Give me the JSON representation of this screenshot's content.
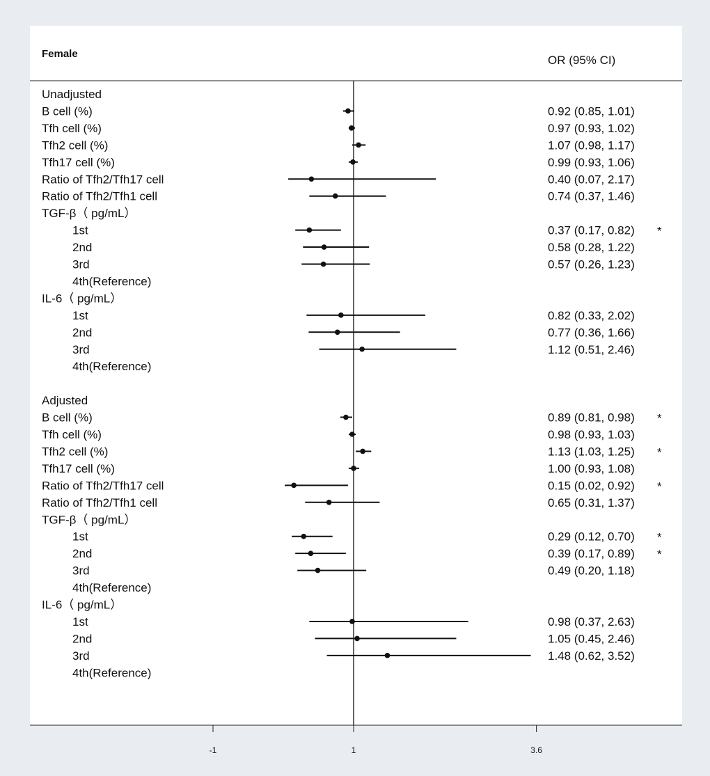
{
  "chart_data": {
    "type": "forest",
    "title": "",
    "group_label": "Female",
    "ci_header": "OR (95% CI)",
    "x_ticks": [
      {
        "value": -1,
        "label": "-1"
      },
      {
        "value": 1,
        "label": "1"
      },
      {
        "value": 3.6,
        "label": "3.6"
      }
    ],
    "reference_value": 1,
    "rows": [
      {
        "label": "Unadjusted",
        "indent": 0
      },
      {
        "label": "B cell (%)",
        "indent": 0,
        "or": 0.92,
        "lo": 0.85,
        "hi": 1.01,
        "ci_text": "0.92 (0.85, 1.01)",
        "sig": ""
      },
      {
        "label": "Tfh cell (%)",
        "indent": 0,
        "or": 0.97,
        "lo": 0.93,
        "hi": 1.02,
        "ci_text": "0.97 (0.93, 1.02)",
        "sig": ""
      },
      {
        "label": "Tfh2 cell (%)",
        "indent": 0,
        "or": 1.07,
        "lo": 0.98,
        "hi": 1.17,
        "ci_text": "1.07 (0.98, 1.17)",
        "sig": ""
      },
      {
        "label": "Tfh17 cell (%)",
        "indent": 0,
        "or": 0.99,
        "lo": 0.93,
        "hi": 1.06,
        "ci_text": "0.99 (0.93, 1.06)",
        "sig": ""
      },
      {
        "label": "Ratio of Tfh2/Tfh17 cell",
        "indent": 0,
        "or": 0.4,
        "lo": 0.07,
        "hi": 2.17,
        "ci_text": "0.40 (0.07, 2.17)",
        "sig": ""
      },
      {
        "label": "Ratio of Tfh2/Tfh1 cell",
        "indent": 0,
        "or": 0.74,
        "lo": 0.37,
        "hi": 1.46,
        "ci_text": "0.74 (0.37, 1.46)",
        "sig": ""
      },
      {
        "label": "TGF-β（ pg/mL）",
        "indent": 0
      },
      {
        "label": "1st",
        "indent": 1,
        "or": 0.37,
        "lo": 0.17,
        "hi": 0.82,
        "ci_text": "0.37 (0.17, 0.82)",
        "sig": "*"
      },
      {
        "label": "2nd",
        "indent": 1,
        "or": 0.58,
        "lo": 0.28,
        "hi": 1.22,
        "ci_text": "0.58 (0.28, 1.22)",
        "sig": ""
      },
      {
        "label": "3rd",
        "indent": 1,
        "or": 0.57,
        "lo": 0.26,
        "hi": 1.23,
        "ci_text": "0.57 (0.26, 1.23)",
        "sig": ""
      },
      {
        "label": "4th(Reference)",
        "indent": 1
      },
      {
        "label": "IL-6（ pg/mL）",
        "indent": 0
      },
      {
        "label": "1st",
        "indent": 1,
        "or": 0.82,
        "lo": 0.33,
        "hi": 2.02,
        "ci_text": "0.82 (0.33, 2.02)",
        "sig": ""
      },
      {
        "label": "2nd",
        "indent": 1,
        "or": 0.77,
        "lo": 0.36,
        "hi": 1.66,
        "ci_text": "0.77 (0.36, 1.66)",
        "sig": ""
      },
      {
        "label": "3rd",
        "indent": 1,
        "or": 1.12,
        "lo": 0.51,
        "hi": 2.46,
        "ci_text": "1.12 (0.51, 2.46)",
        "sig": ""
      },
      {
        "label": "4th(Reference)",
        "indent": 1
      },
      {
        "label": "",
        "indent": 0
      },
      {
        "label": "Adjusted",
        "indent": 0
      },
      {
        "label": "B cell (%)",
        "indent": 0,
        "or": 0.89,
        "lo": 0.81,
        "hi": 0.98,
        "ci_text": "0.89 (0.81, 0.98)",
        "sig": "*"
      },
      {
        "label": "Tfh cell (%)",
        "indent": 0,
        "or": 0.98,
        "lo": 0.93,
        "hi": 1.03,
        "ci_text": "0.98 (0.93, 1.03)",
        "sig": ""
      },
      {
        "label": "Tfh2 cell (%)",
        "indent": 0,
        "or": 1.13,
        "lo": 1.03,
        "hi": 1.25,
        "ci_text": "1.13 (1.03, 1.25)",
        "sig": "*"
      },
      {
        "label": "Tfh17 cell (%)",
        "indent": 0,
        "or": 1.0,
        "lo": 0.93,
        "hi": 1.08,
        "ci_text": "1.00 (0.93, 1.08)",
        "sig": ""
      },
      {
        "label": "Ratio of Tfh2/Tfh17 cell",
        "indent": 0,
        "or": 0.15,
        "lo": 0.02,
        "hi": 0.92,
        "ci_text": "0.15 (0.02, 0.92)",
        "sig": "*"
      },
      {
        "label": "Ratio of Tfh2/Tfh1 cell",
        "indent": 0,
        "or": 0.65,
        "lo": 0.31,
        "hi": 1.37,
        "ci_text": "0.65 (0.31, 1.37)",
        "sig": ""
      },
      {
        "label": "TGF-β（ pg/mL）",
        "indent": 0
      },
      {
        "label": "1st",
        "indent": 1,
        "or": 0.29,
        "lo": 0.12,
        "hi": 0.7,
        "ci_text": "0.29 (0.12, 0.70)",
        "sig": "*"
      },
      {
        "label": "2nd",
        "indent": 1,
        "or": 0.39,
        "lo": 0.17,
        "hi": 0.89,
        "ci_text": "0.39 (0.17, 0.89)",
        "sig": "*"
      },
      {
        "label": "3rd",
        "indent": 1,
        "or": 0.49,
        "lo": 0.2,
        "hi": 1.18,
        "ci_text": "0.49 (0.20, 1.18)",
        "sig": ""
      },
      {
        "label": "4th(Reference)",
        "indent": 1
      },
      {
        "label": "IL-6（ pg/mL）",
        "indent": 0
      },
      {
        "label": "1st",
        "indent": 1,
        "or": 0.98,
        "lo": 0.37,
        "hi": 2.63,
        "ci_text": "0.98 (0.37, 2.63)",
        "sig": ""
      },
      {
        "label": "2nd",
        "indent": 1,
        "or": 1.05,
        "lo": 0.45,
        "hi": 2.46,
        "ci_text": "1.05 (0.45, 2.46)",
        "sig": ""
      },
      {
        "label": "3rd",
        "indent": 1,
        "or": 1.48,
        "lo": 0.62,
        "hi": 3.52,
        "ci_text": "1.48 (0.62, 3.52)",
        "sig": ""
      },
      {
        "label": "4th(Reference)",
        "indent": 1
      }
    ]
  }
}
